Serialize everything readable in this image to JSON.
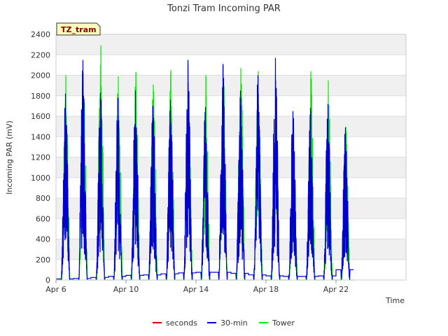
{
  "chart_data": {
    "type": "line",
    "title": "Tonzi Tram Incoming PAR",
    "xlabel": "Time",
    "ylabel": "Incoming PAR (mV)",
    "site_label": "TZ_tram",
    "x_range_days": [
      0,
      20
    ],
    "ylim": [
      0,
      2400
    ],
    "yticks": [
      0,
      200,
      400,
      600,
      800,
      1000,
      1200,
      1400,
      1600,
      1800,
      2000,
      2200,
      2400
    ],
    "xticks": [
      {
        "day": 0,
        "label": "Apr 6"
      },
      {
        "day": 4,
        "label": "Apr 10"
      },
      {
        "day": 8,
        "label": "Apr 14"
      },
      {
        "day": 12,
        "label": "Apr 18"
      },
      {
        "day": 16,
        "label": "Apr 22"
      }
    ],
    "grid": true,
    "legend_position": "bottom",
    "series": [
      {
        "name": "seconds",
        "color": "#cc0000",
        "peaks": []
      },
      {
        "name": "30-min",
        "color": "#0000cc",
        "peaks": [
          1820,
          2150,
          1830,
          1780,
          1850,
          1700,
          1760,
          2150,
          1690,
          2110,
          1850,
          2000,
          2170,
          1650,
          1680,
          1720,
          1490
        ],
        "nightly_baseline": [
          10,
          15,
          25,
          35,
          45,
          50,
          60,
          70,
          75,
          75,
          65,
          50,
          40,
          35,
          35,
          40,
          100
        ]
      },
      {
        "name": "Tower",
        "color": "#00ee00",
        "peaks": [
          2000,
          2020,
          2290,
          1990,
          2030,
          1910,
          2050,
          1930,
          2000,
          2100,
          2070,
          2040,
          1540,
          1340,
          2040,
          1950,
          1500
        ],
        "nightly_baseline": [
          0,
          0,
          0,
          0,
          0,
          0,
          0,
          0,
          0,
          0,
          0,
          0,
          0,
          0,
          0,
          0,
          0
        ]
      }
    ]
  }
}
